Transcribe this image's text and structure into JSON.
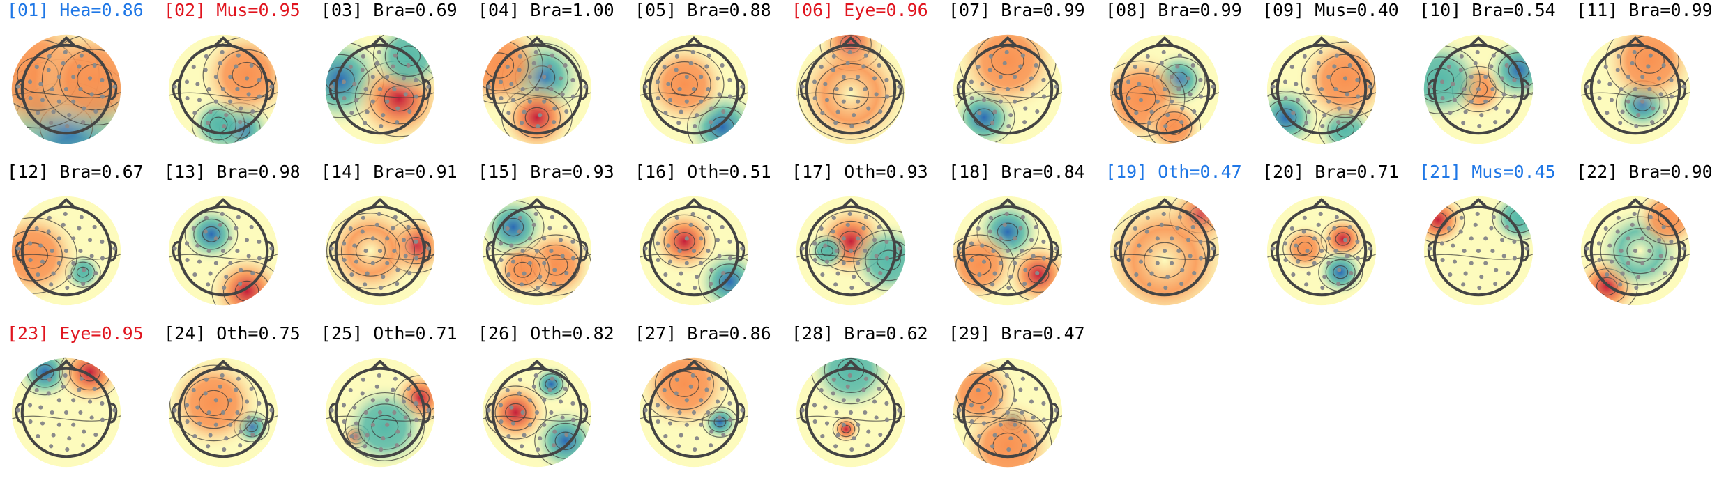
{
  "chart_data": {
    "type": "topomap-grid",
    "colors": {
      "default_label": "#000000",
      "flagged_red": "#e0141e",
      "flagged_blue": "#1f77e6",
      "colormap": [
        "#2c6bb5",
        "#57b9a9",
        "#fdfbbd",
        "#f99252",
        "#c51f3a"
      ]
    },
    "panels": [
      {
        "index": "[01]",
        "label": "Hea",
        "score": "0.86",
        "flag": "blue",
        "blobs": [
          [
            0.0,
            0.8,
            0.9,
            -1.0
          ],
          [
            -0.6,
            -0.3,
            0.7,
            0.6
          ],
          [
            0.6,
            -0.2,
            0.6,
            0.7
          ]
        ]
      },
      {
        "index": "[02]",
        "label": "Mus",
        "score": "0.95",
        "flag": "red",
        "blobs": [
          [
            0.35,
            0.85,
            0.35,
            -1.0
          ],
          [
            -0.1,
            0.75,
            0.3,
            -0.6
          ],
          [
            0.5,
            -0.3,
            0.5,
            0.5
          ]
        ]
      },
      {
        "index": "[03]",
        "label": "Bra",
        "score": "0.69",
        "flag": "none",
        "blobs": [
          [
            -0.85,
            -0.2,
            0.5,
            -1.0
          ],
          [
            0.4,
            0.2,
            0.5,
            0.8
          ],
          [
            0.6,
            -0.7,
            0.4,
            -0.4
          ]
        ]
      },
      {
        "index": "[04]",
        "label": "Bra",
        "score": "1.00",
        "flag": "none",
        "blobs": [
          [
            0.1,
            -0.25,
            0.45,
            -0.8
          ],
          [
            0.0,
            0.6,
            0.4,
            1.0
          ],
          [
            -0.8,
            -0.5,
            0.5,
            0.4
          ]
        ]
      },
      {
        "index": "[05]",
        "label": "Bra",
        "score": "0.88",
        "flag": "none",
        "blobs": [
          [
            0.6,
            0.8,
            0.4,
            -0.9
          ],
          [
            -0.2,
            -0.1,
            0.45,
            0.6
          ]
        ]
      },
      {
        "index": "[06]",
        "label": "Eye",
        "score": "0.96",
        "flag": "red",
        "blobs": [
          [
            0.0,
            -0.95,
            0.35,
            1.0
          ],
          [
            0.0,
            0.1,
            0.6,
            0.2
          ]
        ]
      },
      {
        "index": "[07]",
        "label": "Bra",
        "score": "0.99",
        "flag": "none",
        "blobs": [
          [
            -0.5,
            0.6,
            0.35,
            -1.0
          ],
          [
            0.0,
            -0.6,
            0.55,
            0.6
          ]
        ]
      },
      {
        "index": "[08]",
        "label": "Bra",
        "score": "0.99",
        "flag": "none",
        "blobs": [
          [
            0.3,
            -0.2,
            0.3,
            -1.0
          ],
          [
            -0.5,
            0.2,
            0.5,
            0.7
          ],
          [
            0.2,
            0.8,
            0.3,
            0.6
          ]
        ]
      },
      {
        "index": "[09]",
        "label": "Mus",
        "score": "0.40",
        "flag": "none",
        "blobs": [
          [
            -0.75,
            0.6,
            0.35,
            -0.8
          ],
          [
            0.5,
            0.85,
            0.3,
            -0.6
          ],
          [
            0.5,
            -0.2,
            0.5,
            0.5
          ]
        ]
      },
      {
        "index": "[10]",
        "label": "Bra",
        "score": "0.54",
        "flag": "none",
        "blobs": [
          [
            0.0,
            0.0,
            0.3,
            0.6
          ],
          [
            -0.8,
            -0.2,
            0.45,
            -0.6
          ],
          [
            0.85,
            -0.4,
            0.35,
            -0.8
          ]
        ]
      },
      {
        "index": "[11]",
        "label": "Bra",
        "score": "0.99",
        "flag": "none",
        "blobs": [
          [
            0.15,
            0.3,
            0.3,
            -1.0
          ],
          [
            0.3,
            -0.6,
            0.5,
            0.6
          ]
        ]
      },
      {
        "index": "[12]",
        "label": "Bra",
        "score": "0.67",
        "flag": "none",
        "blobs": [
          [
            0.35,
            0.45,
            0.2,
            -0.7
          ],
          [
            -0.7,
            0.1,
            0.5,
            0.6
          ]
        ]
      },
      {
        "index": "[13]",
        "label": "Bra",
        "score": "0.98",
        "flag": "none",
        "blobs": [
          [
            -0.25,
            -0.35,
            0.3,
            -1.0
          ],
          [
            0.5,
            0.85,
            0.4,
            0.8
          ]
        ]
      },
      {
        "index": "[14]",
        "label": "Bra",
        "score": "0.91",
        "flag": "none",
        "blobs": [
          [
            0.75,
            -0.1,
            0.35,
            1.0
          ],
          [
            -0.2,
            0.0,
            0.5,
            0.2
          ]
        ]
      },
      {
        "index": "[15]",
        "label": "Bra",
        "score": "0.93",
        "flag": "none",
        "blobs": [
          [
            -0.5,
            -0.5,
            0.35,
            -1.0
          ],
          [
            0.4,
            0.3,
            0.4,
            0.7
          ],
          [
            -0.3,
            0.4,
            0.3,
            0.4
          ]
        ]
      },
      {
        "index": "[16]",
        "label": "Oth",
        "score": "0.51",
        "flag": "none",
        "blobs": [
          [
            -0.2,
            -0.2,
            0.35,
            0.8
          ],
          [
            0.75,
            0.65,
            0.35,
            -0.8
          ]
        ]
      },
      {
        "index": "[17]",
        "label": "Oth",
        "score": "0.93",
        "flag": "none",
        "blobs": [
          [
            0.0,
            -0.2,
            0.4,
            1.0
          ],
          [
            -0.5,
            0.0,
            0.2,
            -0.6
          ],
          [
            0.8,
            0.2,
            0.4,
            -0.5
          ]
        ]
      },
      {
        "index": "[18]",
        "label": "Bra",
        "score": "0.84",
        "flag": "none",
        "blobs": [
          [
            0.0,
            -0.4,
            0.35,
            -0.9
          ],
          [
            0.65,
            0.5,
            0.35,
            1.0
          ],
          [
            -0.6,
            0.3,
            0.4,
            0.3
          ]
        ]
      },
      {
        "index": "[19]",
        "label": "Oth",
        "score": "0.47",
        "flag": "blue",
        "blobs": [
          [
            0.75,
            -0.75,
            0.35,
            1.0
          ],
          [
            0.0,
            0.2,
            0.7,
            0.1
          ]
        ]
      },
      {
        "index": "[20]",
        "label": "Bra",
        "score": "0.71",
        "flag": "none",
        "blobs": [
          [
            0.45,
            -0.25,
            0.25,
            1.0
          ],
          [
            -0.35,
            -0.05,
            0.25,
            0.7
          ],
          [
            0.4,
            0.45,
            0.25,
            -0.9
          ]
        ]
      },
      {
        "index": "[21]",
        "label": "Mus",
        "score": "0.45",
        "flag": "blue",
        "blobs": [
          [
            -0.85,
            -0.65,
            0.3,
            1.0
          ],
          [
            0.85,
            -0.7,
            0.3,
            -0.4
          ]
        ]
      },
      {
        "index": "[22]",
        "label": "Bra",
        "score": "0.90",
        "flag": "none",
        "blobs": [
          [
            -0.6,
            0.75,
            0.35,
            1.0
          ],
          [
            0.1,
            0.0,
            0.45,
            -0.2
          ],
          [
            0.7,
            -0.7,
            0.35,
            0.6
          ]
        ]
      },
      {
        "index": "[23]",
        "label": "Eye",
        "score": "0.95",
        "flag": "red",
        "blobs": [
          [
            -0.45,
            -0.85,
            0.3,
            -1.0
          ],
          [
            0.5,
            -0.85,
            0.35,
            1.0
          ]
        ]
      },
      {
        "index": "[24]",
        "label": "Oth",
        "score": "0.75",
        "flag": "none",
        "blobs": [
          [
            0.6,
            0.3,
            0.2,
            -1.0
          ],
          [
            -0.2,
            -0.2,
            0.5,
            0.4
          ]
        ]
      },
      {
        "index": "[25]",
        "label": "Oth",
        "score": "0.71",
        "flag": "none",
        "blobs": [
          [
            -0.5,
            0.5,
            0.15,
            1.0
          ],
          [
            0.85,
            -0.3,
            0.3,
            1.0
          ],
          [
            0.1,
            0.3,
            0.45,
            -0.3
          ]
        ]
      },
      {
        "index": "[26]",
        "label": "Oth",
        "score": "0.82",
        "flag": "none",
        "blobs": [
          [
            0.3,
            -0.6,
            0.2,
            -1.0
          ],
          [
            -0.45,
            0.0,
            0.35,
            0.9
          ],
          [
            0.6,
            0.6,
            0.35,
            -0.8
          ]
        ]
      },
      {
        "index": "[27]",
        "label": "Bra",
        "score": "0.86",
        "flag": "none",
        "blobs": [
          [
            0.55,
            0.2,
            0.2,
            -1.0
          ],
          [
            -0.2,
            -0.6,
            0.5,
            0.7
          ]
        ]
      },
      {
        "index": "[28]",
        "label": "Bra",
        "score": "0.62",
        "flag": "none",
        "blobs": [
          [
            -0.1,
            0.35,
            0.15,
            1.0
          ],
          [
            0.0,
            -0.9,
            0.45,
            -0.5
          ]
        ]
      },
      {
        "index": "[29]",
        "label": "Bra",
        "score": "0.47",
        "flag": "none",
        "blobs": [
          [
            0.1,
            0.2,
            0.15,
            -1.0
          ],
          [
            0.0,
            0.7,
            0.5,
            0.6
          ],
          [
            -0.6,
            -0.4,
            0.4,
            0.3
          ]
        ]
      }
    ]
  }
}
